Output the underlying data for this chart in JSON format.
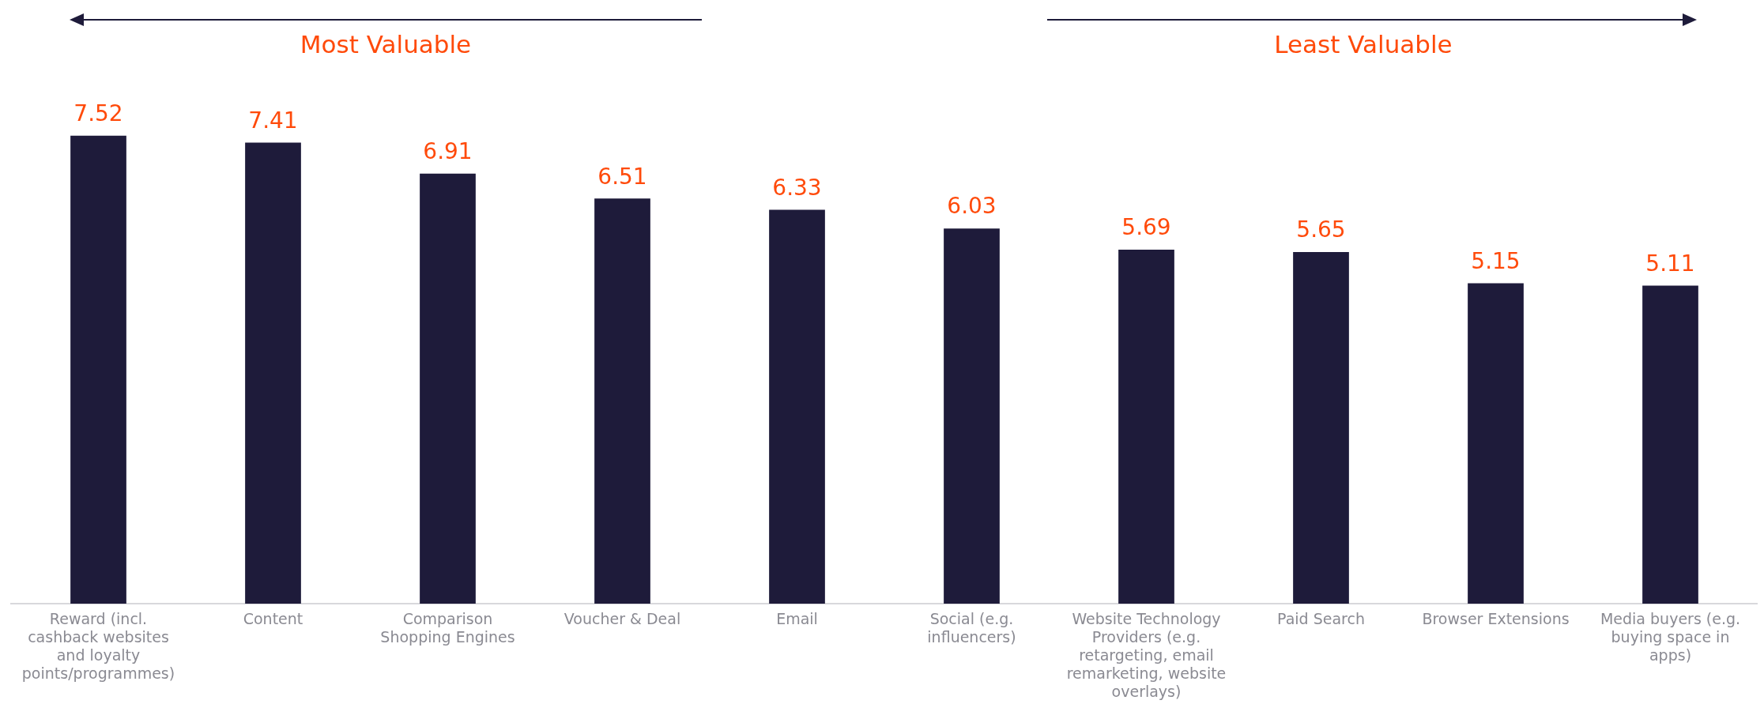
{
  "chart_data": {
    "type": "bar",
    "categories": [
      "Reward (incl. cashback websites and loyalty points/programmes)",
      "Content",
      "Comparison Shopping Engines",
      "Voucher & Deal",
      "Email",
      "Social (e.g. influencers)",
      "Website Technology Providers (e.g. retargeting, email remarketing, website overlays)",
      "Paid Search",
      "Browser Extensions",
      "Media buyers (e.g. buying space in apps)"
    ],
    "values": [
      7.52,
      7.41,
      6.91,
      6.51,
      6.33,
      6.03,
      5.69,
      5.65,
      5.15,
      5.11
    ],
    "color": "#1e1b3a",
    "data_labels": true,
    "grid": false,
    "legend": false,
    "tick_labels": "x",
    "annotations": [
      "Most Valuable",
      "Least Valuable"
    ]
  }
}
